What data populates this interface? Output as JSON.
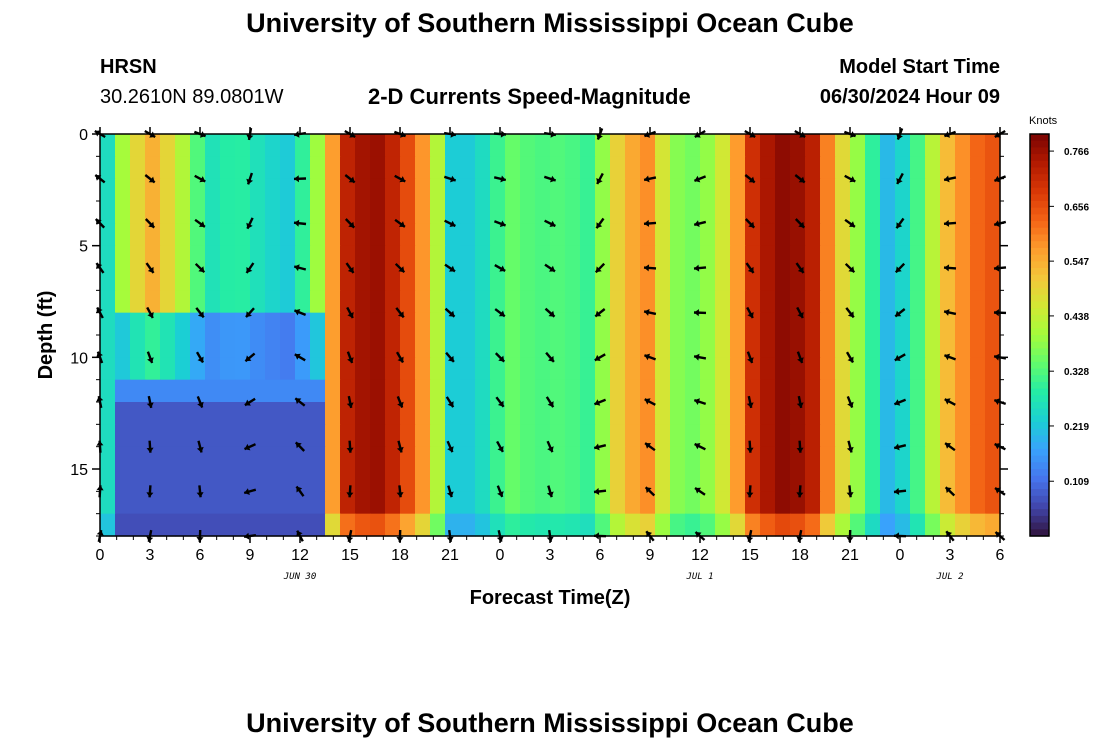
{
  "header": {
    "title": "University of Southern Mississippi Ocean Cube",
    "station": "HRSN",
    "coords": "30.2610N  89.0801W",
    "chart_title": "2-D Currents Speed-Magnitude",
    "model_label": "Model Start Time",
    "model_time": "06/30/2024 Hour 09"
  },
  "footer": {
    "title": "University of Southern Mississippi Ocean Cube"
  },
  "colors": [
    "#30123b",
    "#4145ab",
    "#4675ed",
    "#39a2fc",
    "#1bcfd4",
    "#24eca6",
    "#61fc6c",
    "#a4fc3b",
    "#d1e834",
    "#f3c63a",
    "#fe9b2d",
    "#f36315",
    "#d93806",
    "#b11901",
    "#7a0402"
  ],
  "chart_data": {
    "type": "heatmap",
    "title": "2-D Currents Speed-Magnitude",
    "xlabel": "Forecast Time(Z)",
    "ylabel": "Depth (ft)",
    "x_range": [
      0,
      54
    ],
    "y_range": [
      0,
      18
    ],
    "x_ticks": [
      0,
      3,
      6,
      9,
      12,
      15,
      18,
      21,
      24,
      27,
      30,
      33,
      36,
      39,
      42,
      45,
      48,
      51,
      54
    ],
    "x_tick_labels": [
      "0",
      "3",
      "6",
      "9",
      "12",
      "15",
      "18",
      "21",
      "0",
      "3",
      "6",
      "9",
      "12",
      "15",
      "18",
      "21",
      "0",
      "3",
      "6"
    ],
    "y_ticks": [
      0,
      5,
      10,
      15
    ],
    "y_tick_labels": [
      "0",
      "5",
      "10",
      "15"
    ],
    "date_labels": [
      {
        "hour": 12,
        "label": "JUN 30"
      },
      {
        "hour": 36,
        "label": "JUL 1"
      },
      {
        "hour": 51,
        "label": "JUL 2"
      }
    ],
    "colorbar": {
      "unit": "Knots",
      "min": 0.0,
      "max": 0.8,
      "ticks": [
        0.109,
        0.219,
        0.328,
        0.438,
        0.547,
        0.656,
        0.766
      ],
      "tick_labels": [
        "0.109",
        "0.219",
        "0.328",
        "0.438",
        "0.547",
        "0.656",
        "0.766"
      ]
    },
    "speed_by_hour_surface": [
      0.18,
      0.45,
      0.55,
      0.42,
      0.26,
      0.3,
      0.25,
      0.22,
      0.4,
      0.72,
      0.78,
      0.7,
      0.55,
      0.2,
      0.25,
      0.35,
      0.32,
      0.33,
      0.3,
      0.5,
      0.6,
      0.38,
      0.35,
      0.48,
      0.72,
      0.78,
      0.76,
      0.52,
      0.35,
      0.18,
      0.32,
      0.52,
      0.62,
      0.66
    ],
    "arrow_hours": [
      0,
      3,
      6,
      9,
      12,
      15,
      18,
      21,
      24,
      27,
      30,
      33,
      36,
      39,
      42,
      45,
      48,
      51,
      54
    ],
    "arrow_depths": [
      0,
      2,
      4,
      6,
      8,
      10,
      12,
      14,
      16,
      18
    ],
    "arrow_directions_deg": [
      210,
      30,
      20,
      100,
      170,
      30,
      20,
      10,
      5,
      10,
      110,
      160,
      150,
      30,
      30,
      20,
      110,
      160,
      150
    ]
  }
}
